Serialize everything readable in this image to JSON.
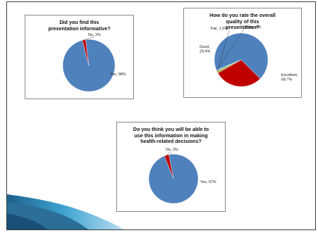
{
  "chart_data": [
    {
      "type": "pie",
      "title": "Did you find this presentation informative?",
      "slices": [
        {
          "label": "Yes",
          "value": 98,
          "display": "Yes, 98%",
          "color": "#4f81bd"
        },
        {
          "label": "No",
          "value": 2,
          "display": "No, 2%",
          "color": "#c00000"
        }
      ]
    },
    {
      "type": "pie",
      "title": "How do you rate the overall quality of this presentation?",
      "slices": [
        {
          "label": "Excellent",
          "value": 68.7,
          "display": "Excellent, 68.7%",
          "color": "#4f81bd"
        },
        {
          "label": "Good",
          "value": 29.4,
          "display": "Good, 29.4%",
          "color": "#c00000"
        },
        {
          "label": "Fair",
          "value": 1.5,
          "display": "Fair, 1.5%",
          "color": "#9bbb59"
        },
        {
          "label": "Poor",
          "value": 0.4,
          "display": "Poor, .4%",
          "color": "#8064a2"
        }
      ]
    },
    {
      "type": "pie",
      "title": "Do you think you will be able to use this information in making health-related decisions?",
      "slices": [
        {
          "label": "Yes",
          "value": 97,
          "display": "Yes, 97%",
          "color": "#4f81bd"
        },
        {
          "label": "No",
          "value": 3,
          "display": "No, 3%",
          "color": "#c00000"
        }
      ]
    }
  ],
  "theme": {
    "swoosh_dark": "#1f5f8b",
    "swoosh_light": "#bfe0f2",
    "swoosh_mid": "#3aa0cf"
  }
}
